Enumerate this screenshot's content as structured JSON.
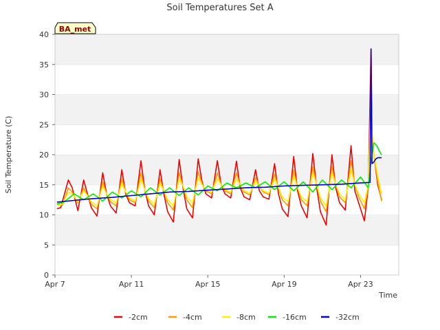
{
  "chart_data": {
    "type": "line",
    "title": "Soil Temperatures Set A",
    "xlabel": "Time",
    "ylabel": "Soil Temperature (C)",
    "site_badge": "BA_met",
    "xlim": [
      0,
      18
    ],
    "ylim": [
      0,
      40
    ],
    "yticks": [
      0,
      5,
      10,
      15,
      20,
      25,
      30,
      35,
      40
    ],
    "xticks": [
      {
        "value": 0,
        "label": "Apr 7"
      },
      {
        "value": 4,
        "label": "Apr 11"
      },
      {
        "value": 8,
        "label": "Apr 15"
      },
      {
        "value": 12,
        "label": "Apr 19"
      },
      {
        "value": 16,
        "label": "Apr 23"
      }
    ],
    "grid": "horizontal bands",
    "legend_position": "bottom",
    "series": [
      {
        "name": "-2cm",
        "color": "#ee0000",
        "x": [
          0.1,
          0.3,
          0.7,
          0.9,
          1.2,
          1.5,
          1.7,
          1.9,
          2.2,
          2.5,
          2.7,
          2.9,
          3.2,
          3.5,
          3.7,
          3.9,
          4.2,
          4.5,
          4.7,
          4.9,
          5.2,
          5.5,
          5.7,
          5.9,
          6.2,
          6.5,
          6.7,
          6.9,
          7.2,
          7.5,
          7.7,
          7.9,
          8.2,
          8.5,
          8.7,
          8.9,
          9.2,
          9.5,
          9.7,
          9.9,
          10.2,
          10.5,
          10.7,
          10.9,
          11.2,
          11.5,
          11.7,
          11.9,
          12.2,
          12.5,
          12.7,
          12.9,
          13.2,
          13.5,
          13.7,
          13.9,
          14.2,
          14.5,
          14.7,
          14.9,
          15.2,
          15.5,
          15.7,
          15.9,
          16.2,
          16.4,
          16.55,
          16.6,
          16.7,
          16.9,
          17.1
        ],
        "values": [
          11.0,
          11.2,
          15.8,
          14.5,
          10.7,
          15.8,
          13.5,
          11.2,
          9.8,
          17.0,
          13.5,
          11.5,
          10.3,
          17.5,
          13.5,
          12.0,
          11.5,
          19.0,
          14.2,
          11.5,
          10.0,
          17.5,
          13.5,
          10.5,
          8.8,
          19.2,
          14.5,
          11.0,
          9.5,
          19.3,
          15.5,
          13.5,
          12.8,
          19.0,
          15.0,
          13.5,
          12.8,
          18.9,
          14.5,
          13.0,
          12.5,
          17.5,
          14.0,
          13.0,
          12.6,
          18.5,
          13.5,
          11.0,
          9.7,
          19.7,
          14.0,
          11.5,
          9.5,
          20.2,
          14.5,
          10.5,
          8.3,
          20.0,
          14.5,
          12.0,
          10.8,
          21.5,
          14.0,
          12.0,
          9.0,
          14.5,
          37.5,
          23.0,
          20.0,
          15.0,
          12.5
        ]
      },
      {
        "name": "-4cm",
        "color": "#ff9900",
        "x": [
          0.1,
          0.4,
          0.7,
          0.9,
          1.2,
          1.5,
          1.7,
          1.9,
          2.2,
          2.5,
          2.7,
          2.9,
          3.2,
          3.5,
          3.7,
          3.9,
          4.2,
          4.5,
          4.7,
          4.9,
          5.2,
          5.5,
          5.7,
          5.9,
          6.2,
          6.5,
          6.7,
          6.9,
          7.2,
          7.5,
          7.7,
          7.9,
          8.2,
          8.5,
          8.7,
          8.9,
          9.2,
          9.5,
          9.7,
          9.9,
          10.2,
          10.5,
          10.7,
          10.9,
          11.2,
          11.5,
          11.7,
          11.9,
          12.2,
          12.5,
          12.7,
          12.9,
          13.2,
          13.5,
          13.7,
          13.9,
          14.2,
          14.5,
          14.7,
          14.9,
          15.2,
          15.5,
          15.7,
          15.9,
          16.2,
          16.4,
          16.55,
          16.6,
          16.7,
          16.9,
          17.1
        ],
        "values": [
          11.8,
          11.6,
          14.5,
          13.8,
          12.0,
          14.5,
          13.2,
          11.8,
          11.0,
          15.5,
          13.5,
          12.2,
          11.5,
          16.0,
          13.8,
          12.5,
          12.0,
          17.0,
          14.2,
          12.3,
          11.2,
          16.0,
          14.0,
          12.0,
          10.8,
          17.0,
          14.8,
          12.5,
          11.2,
          17.2,
          15.2,
          14.0,
          13.5,
          17.0,
          15.0,
          14.0,
          13.5,
          17.0,
          15.0,
          13.8,
          13.3,
          16.2,
          14.8,
          13.8,
          13.4,
          16.8,
          14.5,
          12.5,
          11.5,
          17.5,
          14.5,
          12.5,
          11.5,
          18.0,
          15.0,
          12.3,
          10.5,
          18.0,
          15.0,
          13.0,
          12.0,
          19.0,
          15.0,
          13.0,
          11.0,
          14.5,
          31.0,
          22.5,
          20.0,
          15.5,
          12.3
        ]
      },
      {
        "name": "-8cm",
        "color": "#ffee00",
        "x": [
          0.1,
          0.4,
          0.7,
          0.9,
          1.2,
          1.5,
          1.7,
          1.9,
          2.2,
          2.5,
          2.7,
          2.9,
          3.2,
          3.5,
          3.7,
          3.9,
          4.2,
          4.5,
          4.7,
          4.9,
          5.2,
          5.5,
          5.7,
          5.9,
          6.2,
          6.5,
          6.7,
          6.9,
          7.2,
          7.5,
          7.7,
          7.9,
          8.2,
          8.5,
          8.7,
          8.9,
          9.2,
          9.5,
          9.7,
          9.9,
          10.2,
          10.5,
          10.7,
          10.9,
          11.2,
          11.5,
          11.7,
          11.9,
          12.2,
          12.5,
          12.7,
          12.9,
          13.2,
          13.5,
          13.7,
          13.9,
          14.2,
          14.5,
          14.7,
          14.9,
          15.2,
          15.5,
          15.7,
          15.9,
          16.2,
          16.4,
          16.55,
          16.6,
          16.7,
          16.9,
          17.1
        ],
        "values": [
          11.5,
          11.8,
          13.8,
          13.5,
          12.2,
          14.0,
          13.2,
          12.2,
          11.5,
          14.8,
          13.5,
          12.6,
          12.0,
          15.2,
          13.8,
          12.8,
          12.3,
          16.0,
          14.2,
          12.7,
          11.8,
          15.2,
          14.0,
          12.5,
          11.5,
          16.0,
          14.8,
          13.0,
          12.0,
          16.2,
          15.0,
          14.2,
          13.8,
          16.0,
          15.0,
          14.2,
          13.8,
          16.0,
          15.0,
          14.0,
          13.6,
          15.5,
          14.8,
          14.0,
          13.6,
          16.0,
          14.5,
          13.0,
          12.2,
          16.5,
          14.5,
          13.0,
          12.2,
          17.0,
          15.0,
          12.8,
          11.5,
          17.0,
          15.0,
          13.5,
          12.5,
          17.5,
          15.0,
          13.5,
          12.0,
          15.0,
          29.0,
          24.0,
          20.0,
          16.5,
          13.5
        ]
      },
      {
        "name": "-16cm",
        "color": "#00ee00",
        "x": [
          0.1,
          0.5,
          1.0,
          1.5,
          2.0,
          2.5,
          3.0,
          3.5,
          4.0,
          4.5,
          5.0,
          5.5,
          6.0,
          6.5,
          7.0,
          7.5,
          8.0,
          8.5,
          9.0,
          9.5,
          10.0,
          10.5,
          11.0,
          11.5,
          12.0,
          12.5,
          13.0,
          13.5,
          14.0,
          14.5,
          15.0,
          15.5,
          16.0,
          16.4,
          16.55,
          16.7,
          16.85,
          17.0,
          17.1
        ],
        "values": [
          11.8,
          12.2,
          13.5,
          12.5,
          13.5,
          12.3,
          13.8,
          12.8,
          14.0,
          13.0,
          14.5,
          13.3,
          14.5,
          13.2,
          14.5,
          13.3,
          14.8,
          14.0,
          15.3,
          14.5,
          15.3,
          14.5,
          15.5,
          14.2,
          15.5,
          14.0,
          15.5,
          13.8,
          15.8,
          14.2,
          15.8,
          14.5,
          16.3,
          14.5,
          19.0,
          22.0,
          21.5,
          20.5,
          20.0
        ]
      },
      {
        "name": "-32cm",
        "color": "#0000cc",
        "x": [
          0.1,
          1,
          2,
          3,
          4,
          5,
          6,
          7,
          8,
          9,
          10,
          11,
          12,
          13,
          14,
          15,
          16,
          16.5,
          16.55,
          16.6,
          16.7,
          16.8,
          16.9,
          17.0,
          17.1
        ],
        "values": [
          12.1,
          12.4,
          12.7,
          12.9,
          13.2,
          13.5,
          13.8,
          13.9,
          14.1,
          14.3,
          14.5,
          14.6,
          14.8,
          14.9,
          15.0,
          15.1,
          15.3,
          15.4,
          37.6,
          18.5,
          18.8,
          19.3,
          19.5,
          19.5,
          19.5
        ]
      }
    ]
  }
}
